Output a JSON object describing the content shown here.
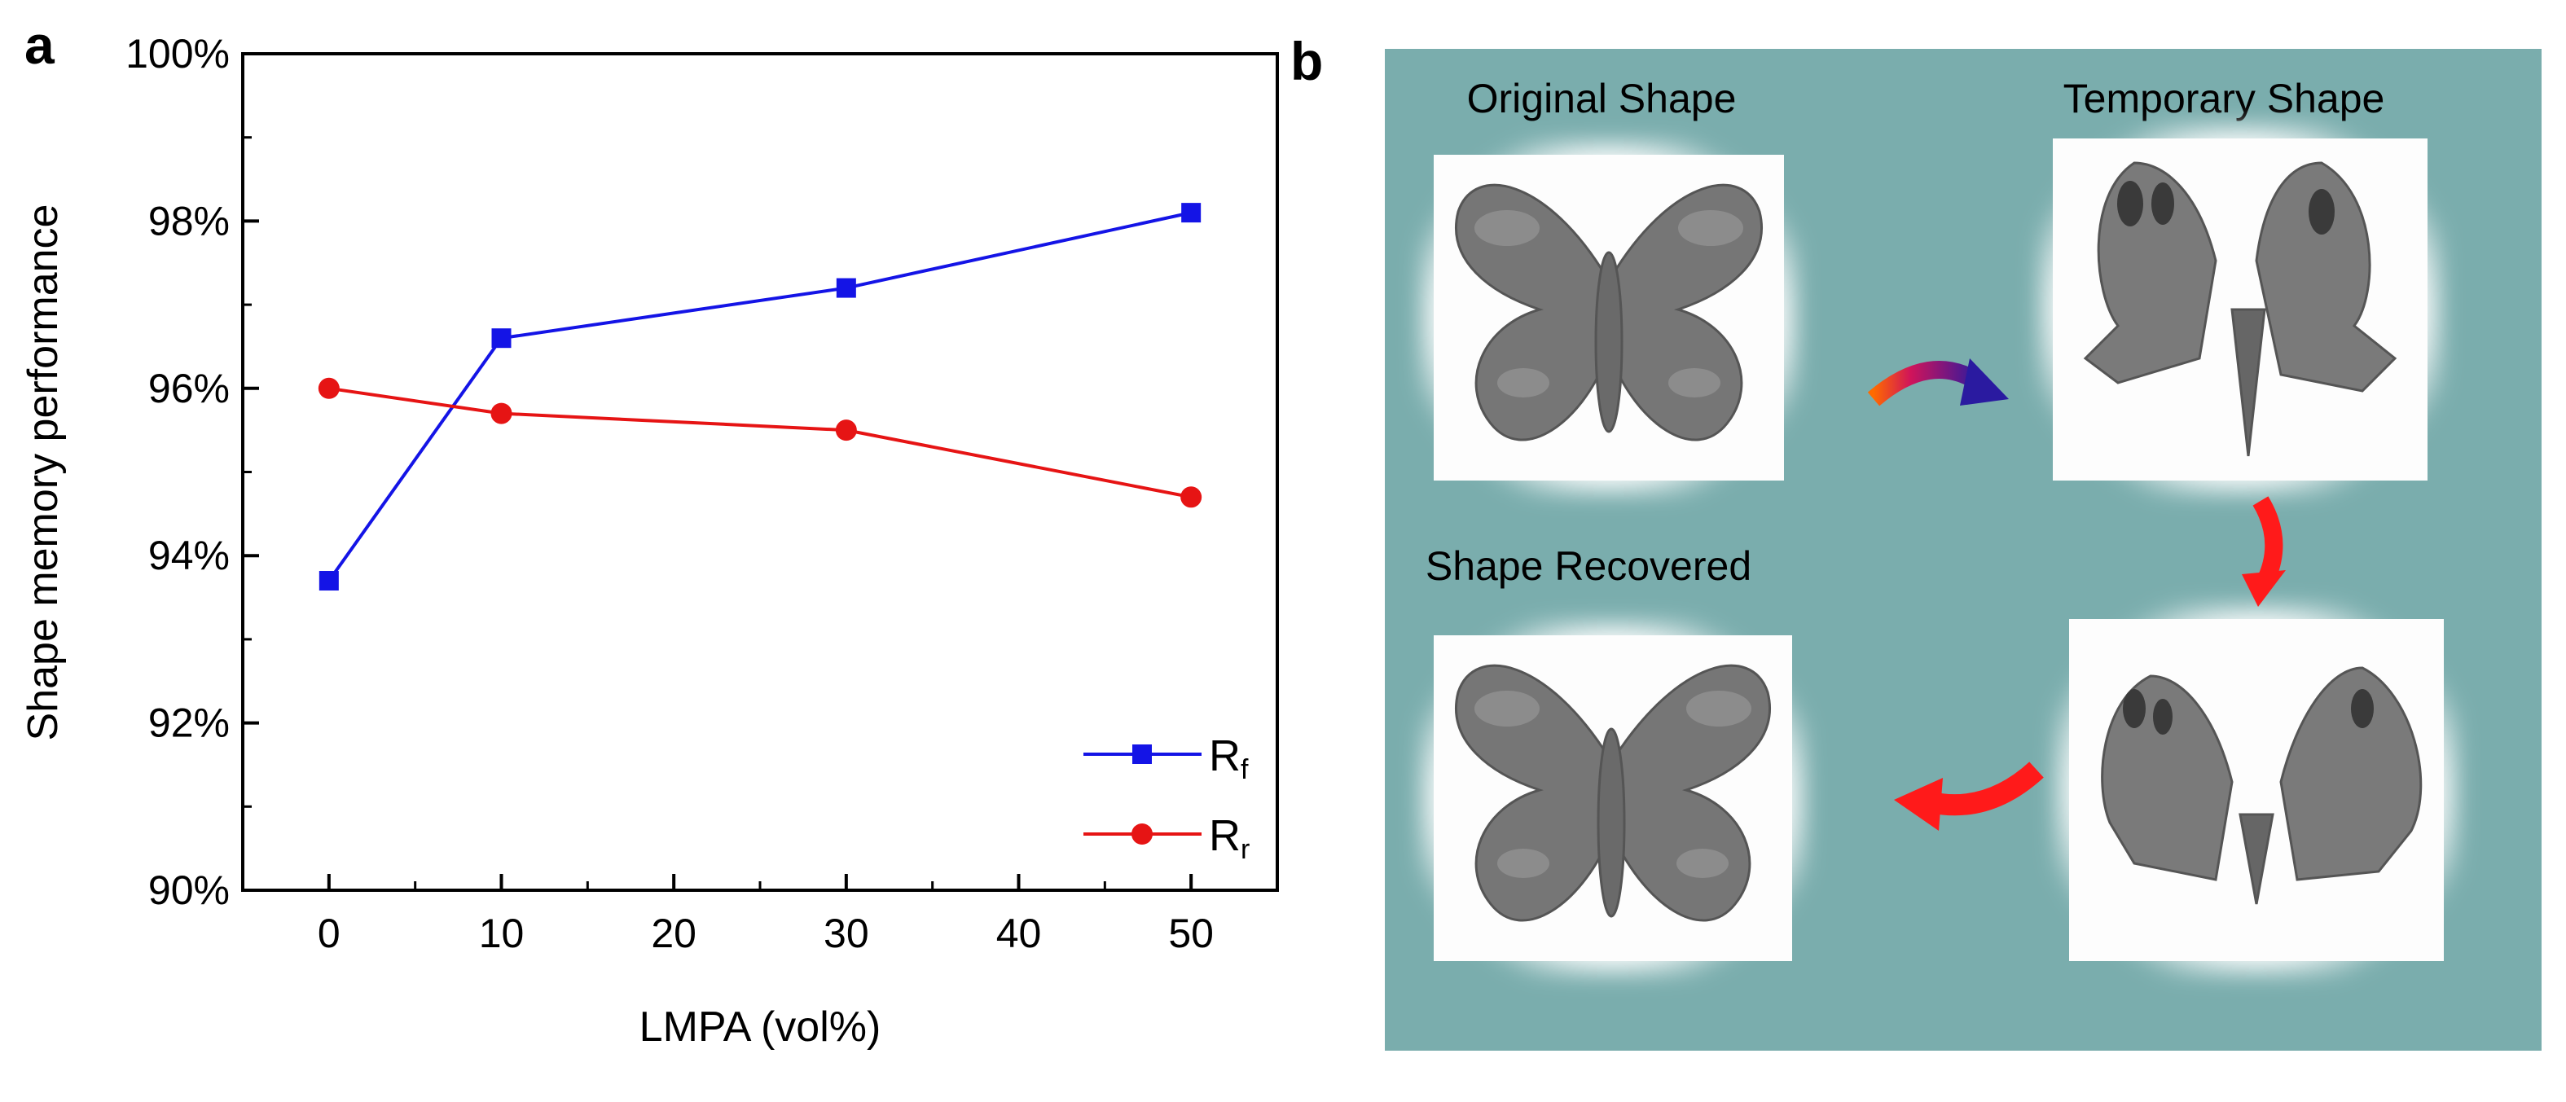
{
  "panel_labels": {
    "a": "a",
    "b": "b"
  },
  "chart_data": {
    "type": "line",
    "title": "",
    "xlabel": "LMPA (vol%)",
    "ylabel": "Shape memory performance",
    "xlim": [
      -5,
      55
    ],
    "ylim": [
      90,
      100
    ],
    "x_ticks": [
      0,
      10,
      20,
      30,
      40,
      50
    ],
    "x_tick_labels": [
      "0",
      "10",
      "20",
      "30",
      "40",
      "50"
    ],
    "y_ticks": [
      90,
      92,
      94,
      96,
      98,
      100
    ],
    "y_tick_labels": [
      "90%",
      "92%",
      "94%",
      "96%",
      "98%",
      "100%"
    ],
    "grid": false,
    "legend_position": "bottom-right",
    "series": [
      {
        "name": "R",
        "subscript": "f",
        "marker": "square",
        "color": "#1414e6",
        "x": [
          0,
          10,
          30,
          50
        ],
        "values": [
          93.7,
          96.6,
          97.2,
          98.1
        ]
      },
      {
        "name": "R",
        "subscript": "r",
        "marker": "circle",
        "color": "#e61414",
        "x": [
          0,
          10,
          30,
          50
        ],
        "values": [
          96.0,
          95.7,
          95.5,
          94.7
        ]
      }
    ]
  },
  "panel_b": {
    "background": "#7aadad",
    "captions": {
      "original": "Original Shape",
      "temporary": "Temporary Shape",
      "recovered": "Shape Recovered"
    },
    "arrow_colors": {
      "red": "#ff1a1a",
      "purple": "#3a1a9a",
      "orange": "#ff5a1a"
    }
  }
}
